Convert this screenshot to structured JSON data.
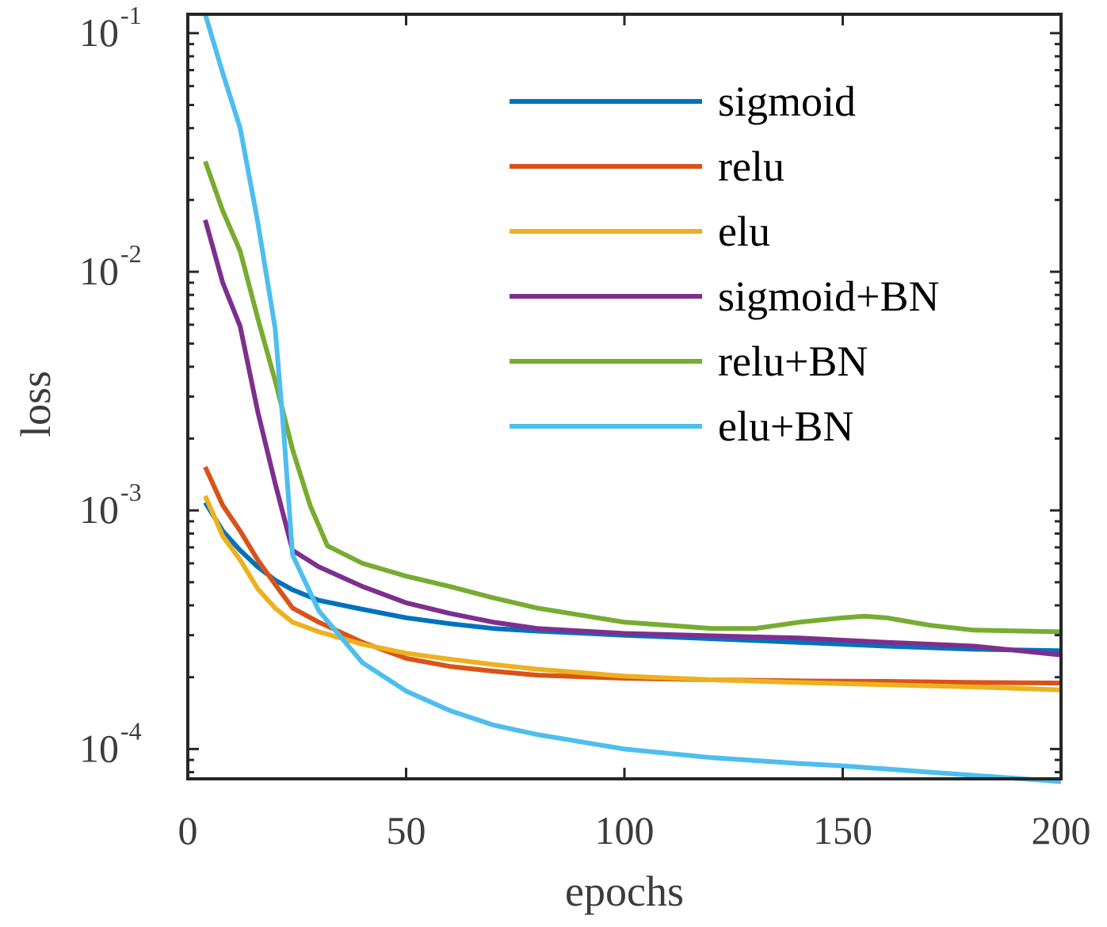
{
  "chart_data": {
    "type": "line",
    "title": "",
    "xlabel": "epochs",
    "ylabel": "loss",
    "yscale": "log",
    "xlim": [
      0,
      200
    ],
    "ylim": [
      7.5e-05,
      0.12
    ],
    "grid": false,
    "legend_position": "top-right",
    "x_ticks": [
      0,
      50,
      100,
      150,
      200
    ],
    "y_ticks": [
      {
        "value": 0.1,
        "base": "10",
        "exp": "-1"
      },
      {
        "value": 0.01,
        "base": "10",
        "exp": "-2"
      },
      {
        "value": 0.001,
        "base": "10",
        "exp": "-3"
      },
      {
        "value": 0.0001,
        "base": "10",
        "exp": "-4"
      }
    ],
    "series": [
      {
        "name": "sigmoid",
        "color": "#0072bd",
        "x": [
          4,
          8,
          12,
          16,
          20,
          24,
          30,
          40,
          50,
          60,
          70,
          80,
          100,
          120,
          140,
          160,
          180,
          200
        ],
        "values": [
          0.00108,
          0.00082,
          0.00068,
          0.00058,
          0.00051,
          0.000465,
          0.00042,
          0.000385,
          0.000355,
          0.000335,
          0.00032,
          0.000312,
          0.0003,
          0.00029,
          0.00028,
          0.00027,
          0.000262,
          0.000258
        ]
      },
      {
        "name": "relu",
        "color": "#d95319",
        "x": [
          4,
          8,
          12,
          16,
          20,
          24,
          30,
          40,
          50,
          60,
          70,
          80,
          100,
          120,
          140,
          160,
          180,
          200
        ],
        "values": [
          0.00152,
          0.00105,
          0.00082,
          0.00062,
          0.00049,
          0.00039,
          0.00034,
          0.00028,
          0.00024,
          0.000222,
          0.000212,
          0.000204,
          0.000198,
          0.000195,
          0.000193,
          0.000192,
          0.00019,
          0.000189
        ]
      },
      {
        "name": "elu",
        "color": "#edb120",
        "x": [
          4,
          8,
          12,
          16,
          20,
          24,
          30,
          40,
          50,
          60,
          70,
          80,
          100,
          120,
          140,
          160,
          180,
          200
        ],
        "values": [
          0.00115,
          0.00078,
          0.00062,
          0.00047,
          0.00039,
          0.00034,
          0.00031,
          0.000275,
          0.000252,
          0.000238,
          0.000226,
          0.000216,
          0.000202,
          0.000195,
          0.00019,
          0.000186,
          0.000182,
          0.000177
        ]
      },
      {
        "name": "sigmoid+BN",
        "color": "#7e2f8e",
        "x": [
          4,
          8,
          12,
          16,
          20,
          24,
          30,
          40,
          50,
          60,
          70,
          80,
          100,
          120,
          140,
          160,
          180,
          200
        ],
        "values": [
          0.0165,
          0.009,
          0.0059,
          0.0026,
          0.0013,
          0.00068,
          0.00058,
          0.00048,
          0.00041,
          0.00037,
          0.00034,
          0.00032,
          0.000305,
          0.000298,
          0.000292,
          0.00028,
          0.00027,
          0.000248
        ]
      },
      {
        "name": "relu+BN",
        "color": "#77ac30",
        "x": [
          4,
          8,
          12,
          16,
          20,
          24,
          28,
          32,
          40,
          50,
          60,
          70,
          80,
          100,
          120,
          130,
          140,
          150,
          155,
          160,
          170,
          180,
          200
        ],
        "values": [
          0.029,
          0.018,
          0.0122,
          0.0064,
          0.0035,
          0.0018,
          0.00105,
          0.00071,
          0.0006,
          0.00053,
          0.00048,
          0.00043,
          0.00039,
          0.00034,
          0.00032,
          0.00032,
          0.00034,
          0.000355,
          0.00036,
          0.000355,
          0.00033,
          0.000315,
          0.00031
        ]
      },
      {
        "name": "elu+BN",
        "color": "#4dbeee",
        "x": [
          4,
          8,
          12,
          16,
          20,
          22,
          24,
          30,
          40,
          50,
          60,
          70,
          80,
          100,
          120,
          140,
          150,
          170,
          200
        ],
        "values": [
          0.12,
          0.068,
          0.04,
          0.0162,
          0.0058,
          0.0021,
          0.00065,
          0.00038,
          0.00023,
          0.000175,
          0.000145,
          0.000126,
          0.000115,
          0.0001,
          9.2e-05,
          8.7e-05,
          8.5e-05,
          8e-05,
          7.3e-05
        ]
      }
    ]
  }
}
